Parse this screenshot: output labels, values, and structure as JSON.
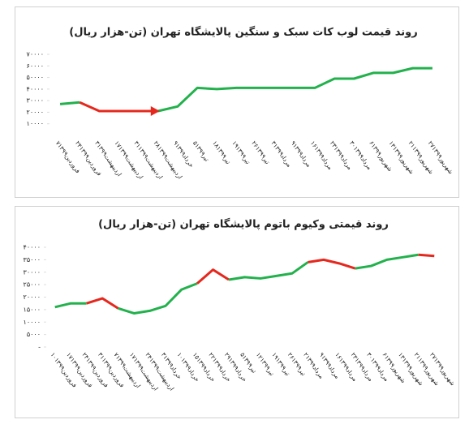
{
  "chart_data": [
    {
      "type": "line",
      "title": "روند قیمت لوب کات سبک و سنگین پالایشگاه تهران (تن-هزار ریال)",
      "categories": [
        "۷فروردین۱۳۹۹",
        "۲۴فروردین۱۳۹۹",
        "۳اردیبهشت۱۳۹۹",
        "۱۷اردیبهشت۱۳۹۹",
        "۳۱اردیبهشت۱۳۹۹",
        "۲۸اردیبهشت۱۳۹۹",
        "۹خرداد۱۳۹۹",
        "۵تیر۱۳۹۹",
        "۱۸تیر۱۳۹۹",
        "۱۹تیر۱۳۹۹",
        "۲۶تیر۱۳۹۹",
        "۳مرداد۱۳۹۹",
        "۹مرداد۱۳۹۹",
        "۱۶مرداد۱۳۹۹",
        "۲۳مرداد۱۳۹۹",
        "۳۰مرداد۱۳۹۹",
        "۶شهریور۱۳۹۹",
        "۱۳شهریور۱۳۹۹",
        "۲۱شهریور۱۳۹۹",
        "۲۷شهریور۱۳۹۹"
      ],
      "values": [
        27000,
        28500,
        21000,
        21000,
        21000,
        21000,
        25000,
        41000,
        40000,
        41000,
        41000,
        41000,
        41000,
        41000,
        49000,
        49000,
        54000,
        54000,
        58000,
        58000
      ],
      "colors": [
        "#22b14c",
        "#22b14c",
        "#e5281e",
        "#e5281e",
        "#e5281e",
        "#e5281e",
        "#22b14c",
        "#22b14c",
        "#22b14c",
        "#22b14c",
        "#22b14c",
        "#22b14c",
        "#22b14c",
        "#22b14c",
        "#22b14c",
        "#22b14c",
        "#22b14c",
        "#22b14c",
        "#22b14c",
        "#22b14c"
      ],
      "arrow_at": 5,
      "ylim": [
        0,
        70000
      ],
      "yticks": [
        {
          "value": 10000,
          "label": "۱۰۰۰۰"
        },
        {
          "value": 20000,
          "label": "۲۰۰۰۰"
        },
        {
          "value": 30000,
          "label": "۳۰۰۰۰"
        },
        {
          "value": 40000,
          "label": "۴۰۰۰۰"
        },
        {
          "value": 50000,
          "label": "۵۰۰۰۰"
        },
        {
          "value": 60000,
          "label": "۶۰۰۰۰"
        },
        {
          "value": 70000,
          "label": "۷۰۰۰۰"
        }
      ]
    },
    {
      "type": "line",
      "title": "روند قیمتی وکیوم باتوم پالایشگاه تهران (تن-هزار ریال)",
      "categories": [
        "۱۰فروردین۱۳۹۹",
        "۱۷فروردین۱۳۹۹",
        "۲۴فروردین۱۳۹۹",
        "۳۱فروردین۱۳۹۹",
        "۷اردیبهشت۱۳۹۹",
        "۱۷اردیبهشت۱۳۹۹",
        "۲۴اردیبهشت۱۳۹۹",
        "۳خرداد۱۳۹۹",
        "۱۰خرداد۱۳۹۹",
        "۱۵خرداد۱۳۹۹",
        "۲۲خرداد۱۳۹۹",
        "۲۹خرداد۱۳۹۹",
        "۵تیر۱۳۹۹",
        "۱۲تیر۱۳۹۹",
        "۱۹تیر۱۳۹۹",
        "۲۶تیر۱۳۹۹",
        "۲مرداد۱۳۹۹",
        "۹مرداد۱۳۹۹",
        "۱۶مرداد۱۳۹۹",
        "۲۳مرداد۱۳۹۹",
        "۳۰مرداد۱۳۹۹",
        "۶شهریور۱۳۹۹",
        "۱۳شهریور۱۳۹۹",
        "۲۱شهریور۱۳۹۹",
        "۲۷شهریور۱۳۹۹"
      ],
      "values": [
        16000,
        17500,
        17500,
        19500,
        15500,
        13500,
        14500,
        16500,
        23000,
        25500,
        31000,
        27000,
        28000,
        27500,
        28500,
        29500,
        34000,
        35000,
        33500,
        31500,
        32500,
        35000,
        36000,
        37000,
        36500
      ],
      "colors": [
        "#22b14c",
        "#22b14c",
        "#22b14c",
        "#e5281e",
        "#e5281e",
        "#22b14c",
        "#22b14c",
        "#22b14c",
        "#22b14c",
        "#22b14c",
        "#e5281e",
        "#e5281e",
        "#22b14c",
        "#22b14c",
        "#22b14c",
        "#22b14c",
        "#22b14c",
        "#e5281e",
        "#e5281e",
        "#e5281e",
        "#22b14c",
        "#22b14c",
        "#22b14c",
        "#22b14c",
        "#e5281e"
      ],
      "ylim": [
        0,
        40000
      ],
      "yticks": [
        {
          "value": 0,
          "label": "-"
        },
        {
          "value": 5000,
          "label": "۵۰۰۰"
        },
        {
          "value": 10000,
          "label": "۱۰۰۰۰"
        },
        {
          "value": 15000,
          "label": "۱۵۰۰۰"
        },
        {
          "value": 20000,
          "label": "۲۰۰۰۰"
        },
        {
          "value": 25000,
          "label": "۲۵۰۰۰"
        },
        {
          "value": 30000,
          "label": "۳۰۰۰۰"
        },
        {
          "value": 35000,
          "label": "۳۵۰۰۰"
        },
        {
          "value": 40000,
          "label": "۴۰۰۰۰"
        }
      ]
    }
  ]
}
